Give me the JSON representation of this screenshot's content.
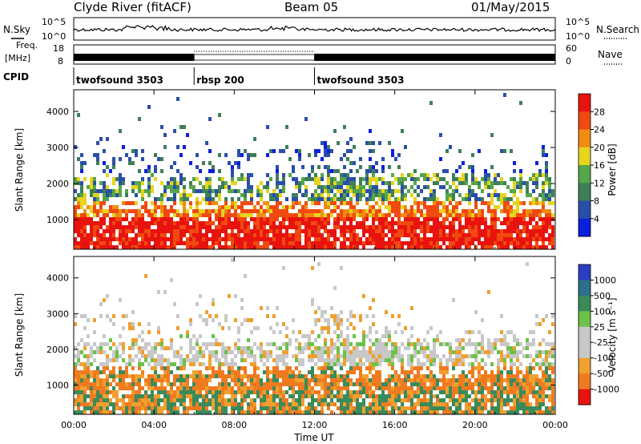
{
  "header": {
    "station": "Clyde River (fitACF)",
    "beam": "Beam 05",
    "date": "01/May/2015"
  },
  "nsky": {
    "label": "N.Sky",
    "top_tick": "10^5",
    "bottom_tick": "10^0",
    "right_label": "N.Search"
  },
  "freq": {
    "label_1": "Freq.",
    "label_2": "[MHz]",
    "left_ticks": [
      "18",
      "8"
    ],
    "right_ticks": [
      "60",
      "0"
    ],
    "right_label": "Nave"
  },
  "cpid": {
    "label": "CPID",
    "segments": [
      {
        "name": "twofsound 3503",
        "start_h": 0,
        "end_h": 6
      },
      {
        "name": "rbsp 200",
        "start_h": 6,
        "end_h": 12
      },
      {
        "name": "twofsound 3503",
        "start_h": 12,
        "end_h": 24
      }
    ]
  },
  "chart_data": [
    {
      "type": "heatmap",
      "title": "",
      "ylabel": "Slant Range [km]",
      "xlabel": "",
      "xlim": [
        0,
        24
      ],
      "ylim": [
        180,
        4600
      ],
      "y_ticks": [
        "1000",
        "2000",
        "3000",
        "4000"
      ],
      "colorbar": {
        "label": "Power [dB]",
        "ticks": [
          "4",
          "8",
          "12",
          "16",
          "20",
          "24",
          "28"
        ],
        "colors": [
          "#0b1fe0",
          "#2a4fa8",
          "#3f7f58",
          "#55a64a",
          "#e6d41e",
          "#f08d10",
          "#f04a10",
          "#e8130f"
        ]
      }
    },
    {
      "type": "heatmap",
      "title": "",
      "ylabel": "Slant Range [km]",
      "xlabel": "Time UT",
      "xlim": [
        0,
        24
      ],
      "ylim": [
        180,
        4600
      ],
      "y_ticks": [
        "1000",
        "2000",
        "3000",
        "4000"
      ],
      "x_ticks": [
        "00:00",
        "04:00",
        "08:00",
        "12:00",
        "16:00",
        "20:00",
        "00:00"
      ],
      "colorbar": {
        "label": "Velocity [m s⁻¹]",
        "ticks": [
          "1000",
          "500",
          "100",
          "25",
          "-25",
          "-100",
          "-500",
          "-1000"
        ],
        "colors": [
          "#2a3fc0",
          "#2e6f8a",
          "#3a8b5a",
          "#6cc248",
          "#c8c8c8",
          "#c8c8c8",
          "#f0a030",
          "#f07a20",
          "#e8130f"
        ]
      }
    }
  ]
}
